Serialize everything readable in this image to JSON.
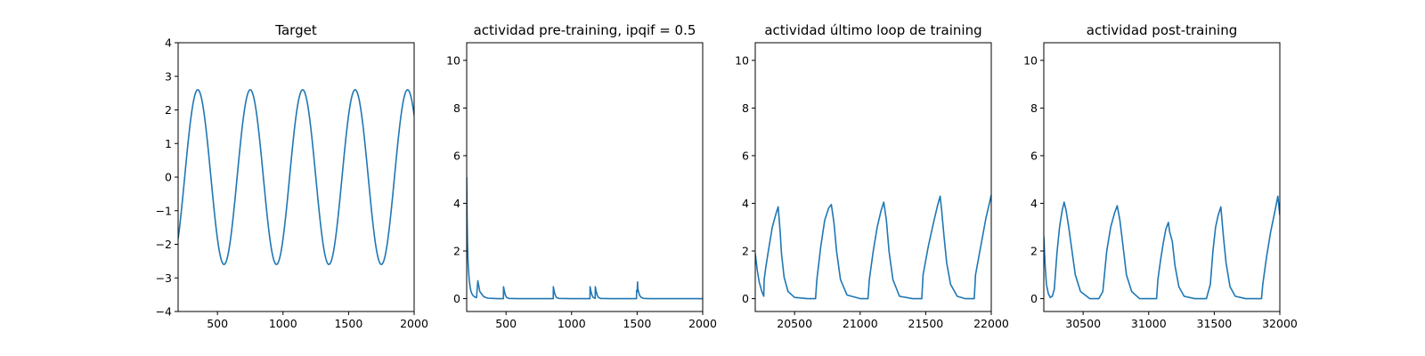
{
  "chart_data": [
    {
      "type": "line",
      "title": "Target",
      "xlim": [
        200,
        2000
      ],
      "ylim": [
        -4,
        4
      ],
      "xticks": [
        500,
        1000,
        1500,
        2000
      ],
      "xtick_labels": [
        "500",
        "1000",
        "1500",
        "2000"
      ],
      "yticks": [
        -4,
        -3,
        -2,
        -1,
        0,
        1,
        2,
        3,
        4
      ],
      "ytick_labels": [
        "−4",
        "−3",
        "−2",
        "−1",
        "0",
        "1",
        "2",
        "3",
        "4"
      ],
      "series": [
        {
          "color": "#1f77b4",
          "function": "2.6*sin(2*pi*(x-250)/400)",
          "x_range": [
            200,
            2000
          ]
        }
      ]
    },
    {
      "type": "line",
      "title": "actividad pre-training, ipqif = 0.5",
      "xlim": [
        200,
        2000
      ],
      "ylim": [
        -0.54,
        10.74
      ],
      "xticks": [
        500,
        1000,
        1500,
        2000
      ],
      "xtick_labels": [
        "500",
        "1000",
        "1500",
        "2000"
      ],
      "yticks": [
        0,
        2,
        4,
        6,
        8,
        10
      ],
      "ytick_labels": [
        "0",
        "2",
        "4",
        "6",
        "8",
        "10"
      ],
      "series": [
        {
          "color": "#1f77b4",
          "x": [
            200,
            203,
            206,
            210,
            215,
            220,
            226,
            232,
            240,
            250,
            262,
            275,
            285,
            300,
            330,
            360,
            400,
            440,
            480,
            481,
            486,
            495,
            505,
            520,
            600,
            700,
            800,
            860,
            861,
            866,
            875,
            885,
            900,
            1000,
            1100,
            1140,
            1141,
            1146,
            1155,
            1165,
            1180,
            1181,
            1186,
            1195,
            1205,
            1220,
            1300,
            1400,
            1495,
            1496,
            1501,
            1503,
            1505,
            1510,
            1520,
            1535,
            1550,
            1600,
            1700,
            1800,
            1900,
            2000
          ],
          "y": [
            5.1,
            3.4,
            2.4,
            1.6,
            1.1,
            0.75,
            0.5,
            0.33,
            0.2,
            0.12,
            0.07,
            0.04,
            0.75,
            0.3,
            0.08,
            0.02,
            0.01,
            0.0,
            0.0,
            0.5,
            0.35,
            0.15,
            0.05,
            0.01,
            0.0,
            0.0,
            0.0,
            0.0,
            0.5,
            0.35,
            0.15,
            0.05,
            0.01,
            0.0,
            0.0,
            0.0,
            0.5,
            0.35,
            0.15,
            0.05,
            0.01,
            0.5,
            0.35,
            0.15,
            0.05,
            0.01,
            0.0,
            0.0,
            0.0,
            0.35,
            0.3,
            0.7,
            0.45,
            0.3,
            0.12,
            0.04,
            0.01,
            0.0,
            0.0,
            0.0,
            0.0,
            0.0
          ]
        }
      ]
    },
    {
      "type": "line",
      "title": "actividad último loop de training",
      "xlim": [
        20200,
        22000
      ],
      "ylim": [
        -0.54,
        10.74
      ],
      "xticks": [
        20500,
        21000,
        21500,
        22000
      ],
      "xtick_labels": [
        "20500",
        "21000",
        "21500",
        "22000"
      ],
      "yticks": [
        0,
        2,
        4,
        6,
        8,
        10
      ],
      "ytick_labels": [
        "0",
        "2",
        "4",
        "6",
        "8",
        "10"
      ],
      "series": [
        {
          "color": "#1f77b4",
          "x": [
            20200,
            20215,
            20230,
            20250,
            20265,
            20268,
            20280,
            20300,
            20330,
            20360,
            20375,
            20380,
            20390,
            20400,
            20420,
            20450,
            20500,
            20600,
            20660,
            20670,
            20700,
            20730,
            20760,
            20780,
            20800,
            20820,
            20850,
            20900,
            21000,
            21060,
            21070,
            21100,
            21130,
            21160,
            21180,
            21200,
            21220,
            21250,
            21300,
            21400,
            21470,
            21480,
            21520,
            21560,
            21590,
            21610,
            21620,
            21640,
            21660,
            21690,
            21740,
            21800,
            21870,
            21880,
            21920,
            21960,
            21990,
            22000
          ],
          "y": [
            1.9,
            1.2,
            0.7,
            0.3,
            0.1,
            0.8,
            1.3,
            2.0,
            3.0,
            3.6,
            3.85,
            3.5,
            2.8,
            1.9,
            0.9,
            0.3,
            0.05,
            0.0,
            0.0,
            0.8,
            2.2,
            3.3,
            3.8,
            3.95,
            3.2,
            2.0,
            0.8,
            0.15,
            0.0,
            0.0,
            0.8,
            2.0,
            3.0,
            3.7,
            4.05,
            3.3,
            2.0,
            0.8,
            0.1,
            0.0,
            0.0,
            1.0,
            2.2,
            3.2,
            3.9,
            4.3,
            3.8,
            2.6,
            1.5,
            0.6,
            0.1,
            0.0,
            0.0,
            1.0,
            2.2,
            3.4,
            4.1,
            4.35
          ]
        }
      ]
    },
    {
      "type": "line",
      "title": "actividad post-training",
      "xlim": [
        30200,
        32000
      ],
      "ylim": [
        -0.54,
        10.74
      ],
      "xticks": [
        30500,
        31000,
        31500,
        32000
      ],
      "xtick_labels": [
        "30500",
        "31000",
        "31500",
        "32000"
      ],
      "yticks": [
        0,
        2,
        4,
        6,
        8,
        10
      ],
      "ytick_labels": [
        "0",
        "2",
        "4",
        "6",
        "8",
        "10"
      ],
      "series": [
        {
          "color": "#1f77b4",
          "x": [
            30200,
            30210,
            30220,
            30235,
            30250,
            30265,
            30280,
            30300,
            30320,
            30340,
            30355,
            30370,
            30390,
            30410,
            30440,
            30480,
            30550,
            30620,
            30650,
            30680,
            30710,
            30740,
            30760,
            30780,
            30800,
            30830,
            30870,
            30930,
            31000,
            31060,
            31070,
            31090,
            31110,
            31130,
            31150,
            31160,
            31180,
            31200,
            31230,
            31270,
            31350,
            31440,
            31470,
            31490,
            31510,
            31530,
            31550,
            31570,
            31590,
            31620,
            31660,
            31740,
            31860,
            31870,
            31900,
            31930,
            31960,
            31985,
            32000
          ],
          "y": [
            2.6,
            1.4,
            0.6,
            0.2,
            0.05,
            0.1,
            0.4,
            1.9,
            3.0,
            3.7,
            4.05,
            3.7,
            3.0,
            2.2,
            1.0,
            0.3,
            0.0,
            0.0,
            0.3,
            2.0,
            3.0,
            3.6,
            3.9,
            3.3,
            2.4,
            1.0,
            0.3,
            0.0,
            0.0,
            0.0,
            0.8,
            1.6,
            2.3,
            2.9,
            3.2,
            2.8,
            2.4,
            1.4,
            0.5,
            0.1,
            0.0,
            0.0,
            0.6,
            2.0,
            3.0,
            3.5,
            3.85,
            2.6,
            1.5,
            0.5,
            0.1,
            0.0,
            0.0,
            0.6,
            1.8,
            2.8,
            3.6,
            4.3,
            3.5
          ]
        }
      ]
    }
  ]
}
